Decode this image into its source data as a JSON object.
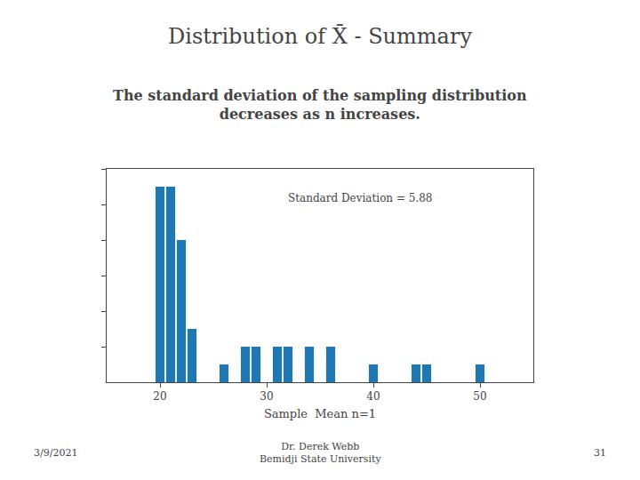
{
  "chart_data": {
    "type": "bar",
    "title": "Distribution of X̄ - Summary",
    "subtitle": [
      "The standard deviation of the sampling distribution",
      "decreases as n increases."
    ],
    "annotation": "Standard Deviation = 5.88",
    "xlabel": "Sample  Mean n=1",
    "footer_left": "3/9/2021",
    "footer_center": [
      "Dr. Derek Webb",
      "Bemidji State University"
    ],
    "footer_right": "31",
    "x": [
      20,
      21,
      22,
      23,
      26,
      28,
      29,
      31,
      32,
      34,
      36,
      40,
      44,
      45,
      50
    ],
    "values": [
      11,
      11,
      8,
      3,
      1,
      2,
      2,
      2,
      2,
      2,
      2,
      1,
      1,
      1,
      1
    ],
    "xlim": [
      15,
      55
    ],
    "xticks": [
      20,
      30,
      40,
      50
    ],
    "ylim": [
      0,
      12
    ],
    "yticks": [
      2,
      4,
      6,
      8,
      10,
      12
    ],
    "tick_labels": "x",
    "grid": false
  }
}
